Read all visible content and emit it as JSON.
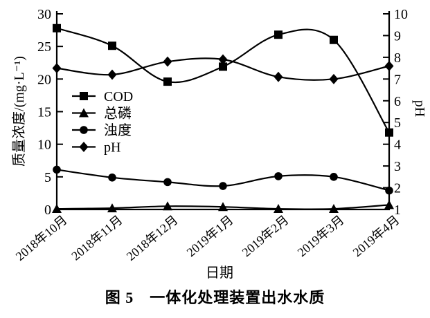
{
  "figure": {
    "caption": "图 5　一体化处理装置出水水质"
  },
  "chart_data": {
    "type": "line",
    "title": "图 5 一体化处理装置出水水质",
    "xlabel": "日期",
    "categories": [
      "2018年10月",
      "2018年11月",
      "2018年12月",
      "2019年1月",
      "2019年2月",
      "2019年3月",
      "2019年4月"
    ],
    "left_axis": {
      "label": "质量浓度/(mg·L⁻¹)",
      "min": 0,
      "max": 30,
      "tick_step": 5
    },
    "right_axis": {
      "label": "pH",
      "min": 1,
      "max": 10,
      "tick_step": 1
    },
    "series": [
      {
        "name": "COD",
        "axis": "left",
        "marker": "square",
        "values": [
          27.8,
          25.1,
          19.6,
          21.9,
          26.8,
          26.0,
          11.8
        ]
      },
      {
        "name": "总磷",
        "axis": "left",
        "marker": "triangle",
        "values": [
          0.1,
          0.2,
          0.5,
          0.4,
          0.1,
          0.1,
          0.7
        ]
      },
      {
        "name": "浊度",
        "axis": "left",
        "marker": "circle",
        "values": [
          6.1,
          4.9,
          4.2,
          3.6,
          5.1,
          5.0,
          2.9
        ]
      },
      {
        "name": "pH",
        "axis": "right",
        "marker": "diamond",
        "values": [
          7.5,
          7.2,
          7.8,
          7.9,
          7.1,
          7.0,
          7.6
        ]
      }
    ],
    "legend": {
      "position": "inside-left",
      "entries": [
        "COD",
        "总磷",
        "浊度",
        "pH"
      ]
    },
    "grid": false,
    "smooth": true,
    "colors": {
      "ink": "#000000",
      "background": "#ffffff"
    }
  }
}
